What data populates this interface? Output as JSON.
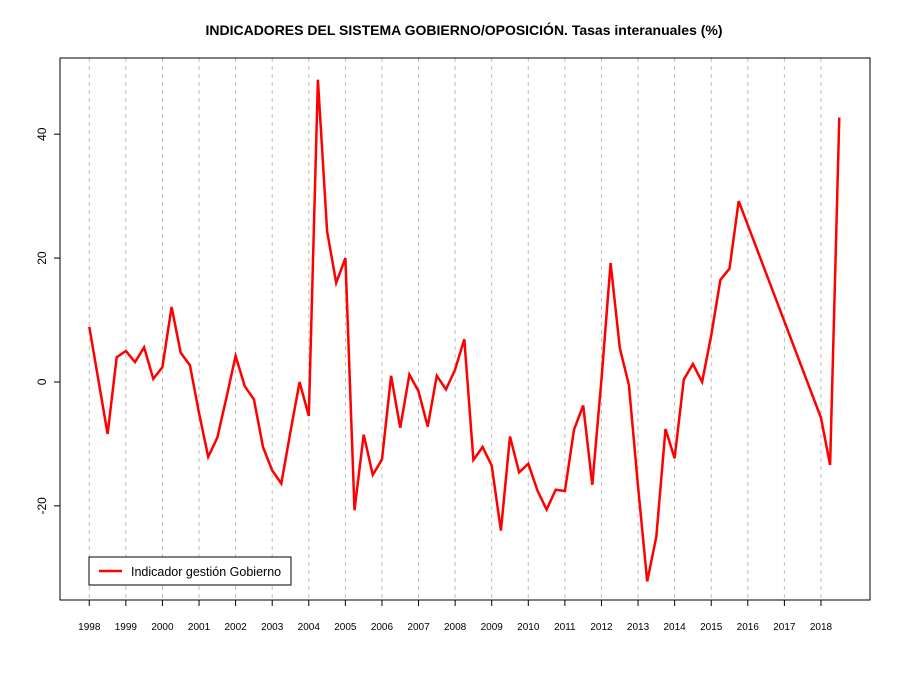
{
  "chart_data": {
    "type": "line",
    "title": "INDICADORES DEL SISTEMA GOBIERNO/OPOSICIÓN. Tasas interanuales (%)",
    "xlabel": "",
    "ylabel": "",
    "xlim": [
      1997.2,
      2019.34
    ],
    "ylim": [
      -35.2,
      52.3
    ],
    "x_ticks": [
      1998,
      1999,
      2000,
      2001,
      2002,
      2003,
      2004,
      2005,
      2006,
      2007,
      2008,
      2009,
      2010,
      2011,
      2012,
      2013,
      2014,
      2015,
      2016,
      2017,
      2018
    ],
    "y_ticks": [
      -20,
      0,
      20,
      40
    ],
    "grid": "vertical dashed at each year",
    "legend_position": "bottom-left",
    "series": [
      {
        "name": "Indicador gestión Gobierno",
        "color": "#ff0000",
        "x": [
          1998.0,
          1998.25,
          1998.5,
          1998.75,
          1999.0,
          1999.25,
          1999.5,
          1999.75,
          2000.0,
          2000.25,
          2000.5,
          2000.75,
          2001.0,
          2001.25,
          2001.5,
          2001.75,
          2002.0,
          2002.25,
          2002.5,
          2002.75,
          2003.0,
          2003.25,
          2003.5,
          2003.75,
          2004.0,
          2004.25,
          2004.5,
          2004.75,
          2005.0,
          2005.25,
          2005.5,
          2005.75,
          2006.0,
          2006.25,
          2006.5,
          2006.75,
          2007.0,
          2007.25,
          2007.5,
          2007.75,
          2008.0,
          2008.25,
          2008.5,
          2008.75,
          2009.0,
          2009.25,
          2009.5,
          2009.75,
          2010.0,
          2010.25,
          2010.5,
          2010.75,
          2011.0,
          2011.25,
          2011.5,
          2011.75,
          2012.0,
          2012.25,
          2012.5,
          2012.75,
          2013.0,
          2013.25,
          2013.5,
          2013.75,
          2014.0,
          2014.25,
          2014.5,
          2014.75,
          2015.0,
          2015.25,
          2015.5,
          2015.75,
          2018.0,
          2018.25,
          2018.5
        ],
        "values": [
          8.9,
          0.3,
          -8.4,
          4.0,
          5.0,
          3.2,
          5.6,
          0.5,
          2.4,
          12.1,
          4.7,
          2.7,
          -5.0,
          -12.1,
          -9.0,
          -2.5,
          4.2,
          -0.7,
          -2.8,
          -10.5,
          -14.3,
          -16.4,
          -8.0,
          0.0,
          -5.5,
          48.8,
          24.3,
          16.0,
          20.0,
          -20.7,
          -8.5,
          -15.0,
          -12.5,
          1.0,
          -7.4,
          1.2,
          -1.5,
          -7.2,
          1.0,
          -1.2,
          2.0,
          6.9,
          -12.6,
          -10.5,
          -13.5,
          -24.0,
          -8.8,
          -14.6,
          -13.2,
          -17.5,
          -20.6,
          -17.4,
          -17.6,
          -7.7,
          -3.8,
          -16.6,
          0.5,
          19.2,
          5.5,
          -0.5,
          -16.8,
          -32.2,
          -25.0,
          -7.6,
          -12.3,
          0.4,
          2.9,
          0.0,
          7.5,
          16.5,
          18.3,
          29.2,
          -5.8,
          -13.4,
          42.7
        ]
      }
    ]
  }
}
